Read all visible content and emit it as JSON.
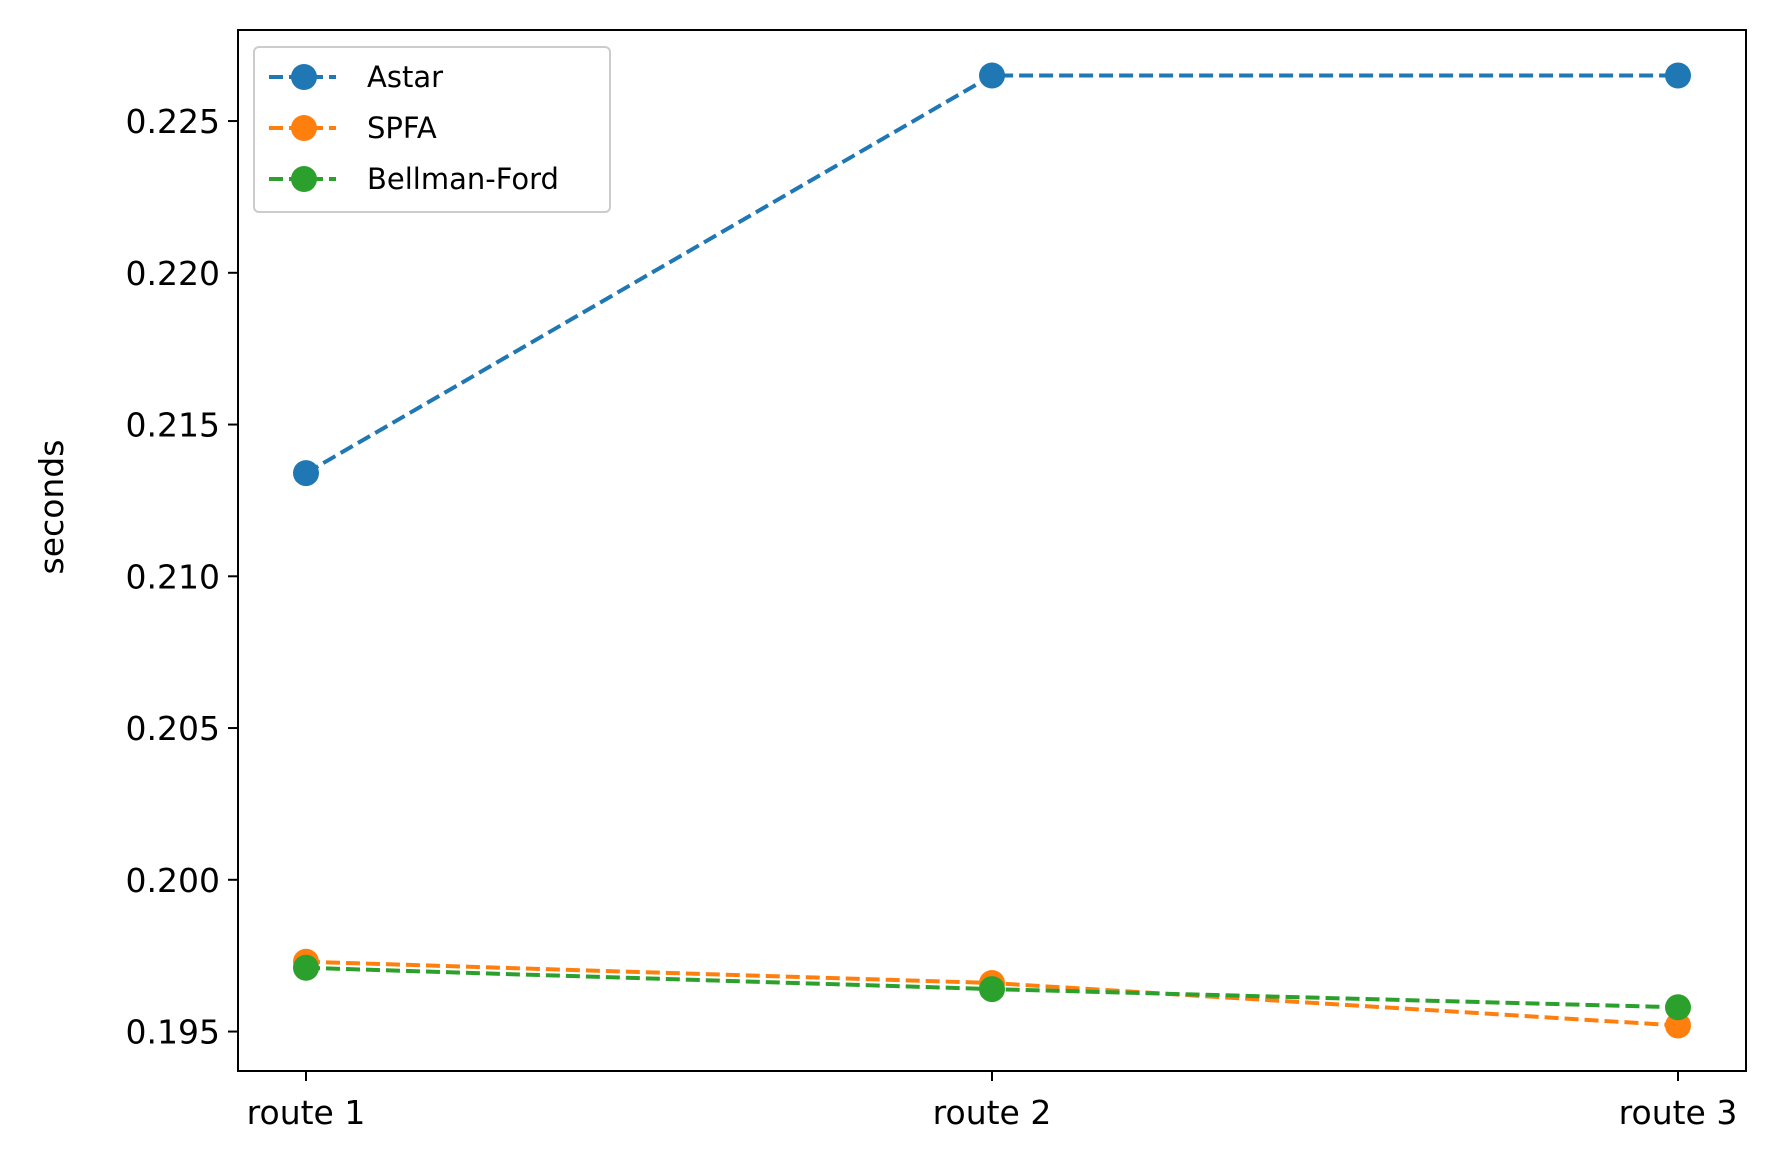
{
  "chart_data": {
    "type": "line",
    "categories": [
      "route 1",
      "route 2",
      "route 3"
    ],
    "series": [
      {
        "name": "Astar",
        "values": [
          0.2134,
          0.2265,
          0.2265
        ],
        "color": "#1f77b4"
      },
      {
        "name": "SPFA",
        "values": [
          0.1973,
          0.1966,
          0.1952
        ],
        "color": "#ff7f0e"
      },
      {
        "name": "Bellman-Ford",
        "values": [
          0.1971,
          0.1964,
          0.1958
        ],
        "color": "#2ca02c"
      }
    ],
    "ylabel": "seconds",
    "ylim": [
      0.1937,
      0.228
    ],
    "yticks": [
      "0.195",
      "0.200",
      "0.205",
      "0.210",
      "0.215",
      "0.220",
      "0.225"
    ],
    "ytick_values": [
      0.195,
      0.2,
      0.205,
      0.21,
      0.215,
      0.22,
      0.225
    ],
    "line_style": "dashed",
    "marker": "circle",
    "grid": false,
    "legend": "top-left"
  }
}
